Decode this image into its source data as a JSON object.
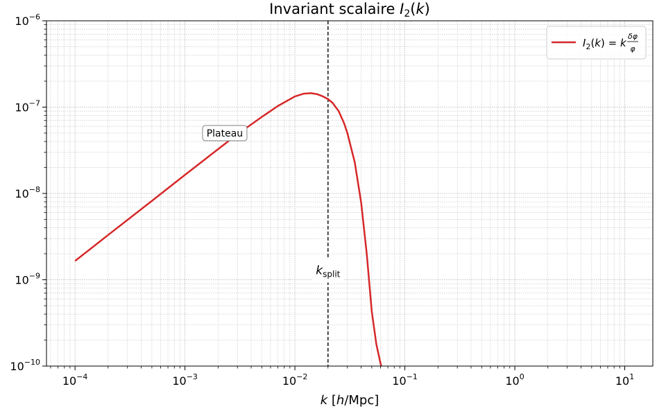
{
  "chart_data": {
    "type": "line",
    "title": "Invariant scalaire I₂(k)",
    "xlabel": "k [h/Mpc]",
    "ylabel": "",
    "xscale": "log",
    "yscale": "log",
    "xlim": [
      5.5e-05,
      18
    ],
    "ylim": [
      1e-10,
      1e-06
    ],
    "grid": true,
    "legend_placement": "top-right",
    "x_ticks": [
      {
        "base": "10",
        "exp": "−4"
      },
      {
        "base": "10",
        "exp": "−3"
      },
      {
        "base": "10",
        "exp": "−2"
      },
      {
        "base": "10",
        "exp": "−1"
      },
      {
        "base": "10",
        "exp": "0"
      },
      {
        "base": "10",
        "exp": "1"
      }
    ],
    "y_ticks": [
      {
        "base": "10",
        "exp": "−10"
      },
      {
        "base": "10",
        "exp": "−9"
      },
      {
        "base": "10",
        "exp": "−8"
      },
      {
        "base": "10",
        "exp": "−7"
      },
      {
        "base": "10",
        "exp": "−6"
      }
    ],
    "series": [
      {
        "name": "I₂(k) = k δφ/φ",
        "color": "#d62728",
        "x": [
          0.0001,
          0.0002,
          0.0005,
          0.001,
          0.002,
          0.003,
          0.005,
          0.007,
          0.01,
          0.012,
          0.014,
          0.016,
          0.018,
          0.02,
          0.022,
          0.025,
          0.028,
          0.03,
          0.035,
          0.04,
          0.045,
          0.05,
          0.055,
          0.06,
          0.061
        ],
        "y": [
          1.65e-09,
          3.3e-09,
          8.2e-09,
          1.64e-08,
          3.26e-08,
          4.85e-08,
          7.7e-08,
          1.03e-07,
          1.33e-07,
          1.43e-07,
          1.45e-07,
          1.41e-07,
          1.33e-07,
          1.24e-07,
          1.12e-07,
          9e-08,
          6.5e-08,
          5e-08,
          2.3e-08,
          7.9e-09,
          2e-09,
          4.3e-10,
          1.8e-10,
          1.08e-10,
          1e-10
        ]
      }
    ],
    "vline": {
      "x": 0.02,
      "color": "#000000",
      "style": "dashed",
      "label": "k_split"
    },
    "annotations": [
      {
        "text": "Plateau",
        "x": 0.0023,
        "y": 5e-08
      }
    ]
  }
}
